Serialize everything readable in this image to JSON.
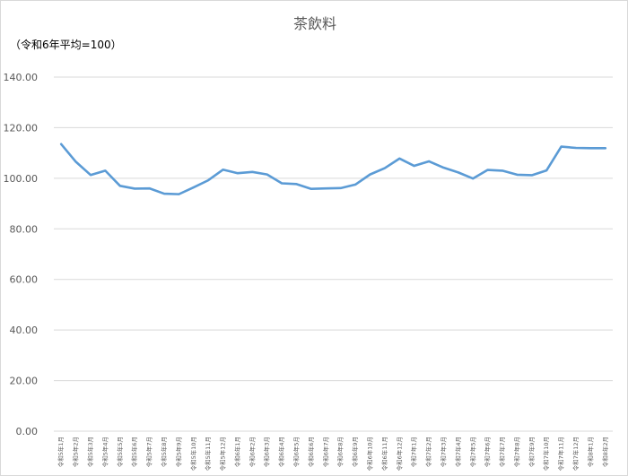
{
  "chart_data": {
    "type": "line",
    "title": "茶飲料",
    "unit_note": "（令和6年平均=100）",
    "ylim": [
      0,
      140
    ],
    "y_ticks": [
      "0.00",
      "20.00",
      "40.00",
      "60.00",
      "80.00",
      "100.00",
      "120.00",
      "140.00"
    ],
    "grid": true,
    "legend": "none",
    "colors": {
      "line": "#5b9bd5",
      "grid": "#d9d9d9",
      "tick_text": "#595959"
    },
    "categories": [
      "令和5年1月",
      "令和5年2月",
      "令和5年3月",
      "令和5年4月",
      "令和5年5月",
      "令和5年6月",
      "令和5年7月",
      "令和5年8月",
      "令和5年9月",
      "令和5年10月",
      "令和5年11月",
      "令和5年12月",
      "令和6年1月",
      "令和6年2月",
      "令和6年3月",
      "令和6年4月",
      "令和6年5月",
      "令和6年6月",
      "令和6年7月",
      "令和6年8月",
      "令和6年9月",
      "令和6年10月",
      "令和6年11月",
      "令和6年12月",
      "令和7年1月",
      "令和7年2月",
      "令和7年3月",
      "令和7年4月",
      "令和7年5月",
      "令和7年6月",
      "令和7年7月",
      "令和7年8月",
      "令和7年9月",
      "令和7年10月",
      "令和7年11月",
      "令和7年12月",
      "令和8年1月",
      "令和8年2月"
    ],
    "values": [
      113.5,
      106.5,
      101.3,
      103.0,
      97.0,
      95.9,
      96.0,
      93.9,
      93.7,
      96.4,
      99.2,
      103.4,
      102.0,
      102.5,
      101.5,
      98.0,
      97.7,
      95.8,
      96.0,
      96.1,
      97.5,
      101.5,
      104.0,
      107.8,
      104.9,
      106.7,
      104.2,
      102.3,
      99.9,
      103.3,
      103.0,
      101.4,
      101.2,
      103.1,
      112.5,
      112.0,
      111.9,
      111.9
    ]
  }
}
